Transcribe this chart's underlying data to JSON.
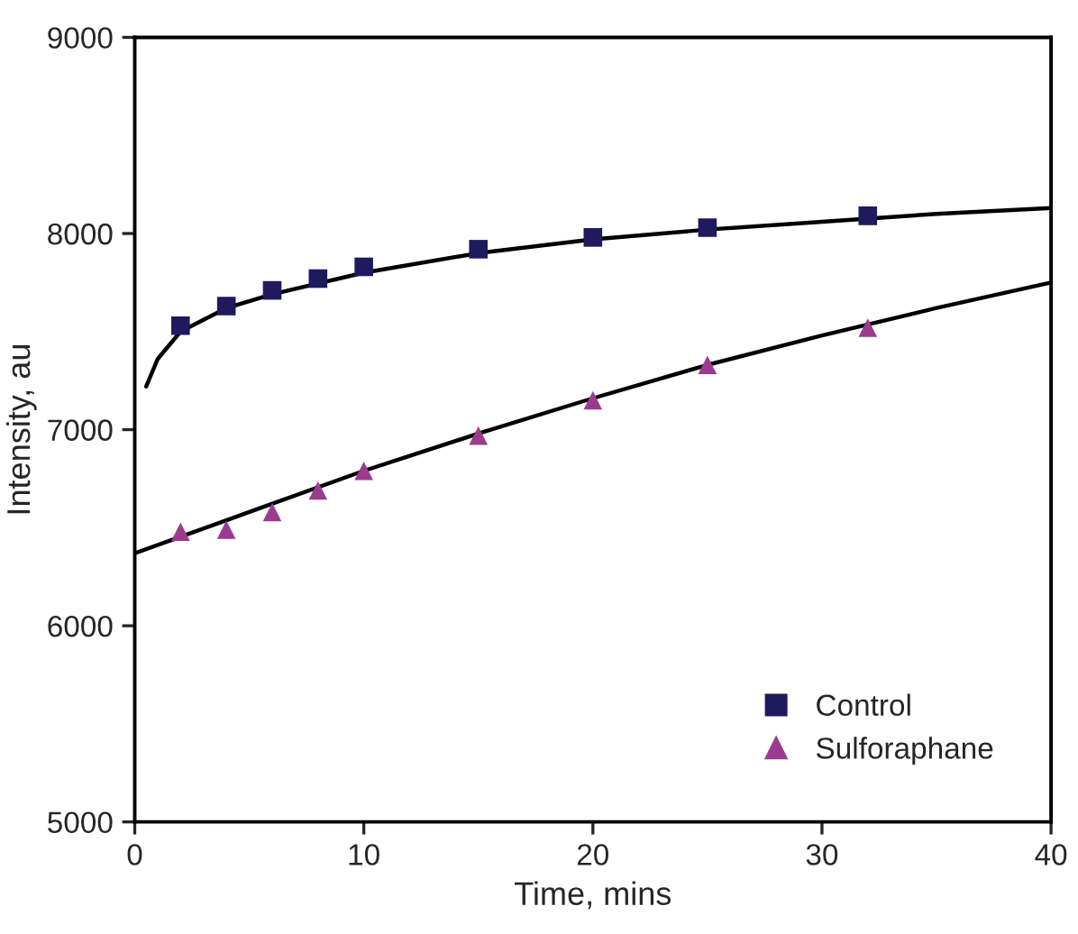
{
  "chart_data": {
    "type": "scatter",
    "xlabel": "Time, mins",
    "ylabel": "Intensity, au",
    "xlim": [
      0,
      40
    ],
    "xticks": [
      0,
      10,
      20,
      30,
      40
    ],
    "ylim": [
      5000,
      9000
    ],
    "yticks": [
      5000,
      6000,
      7000,
      8000,
      9000
    ],
    "grid": false,
    "legend": "bottom right",
    "series": [
      {
        "type": "line",
        "color": "#000000",
        "line_style": "solid",
        "marker": "none",
        "x": [
          0.5,
          1,
          2,
          4,
          6,
          10,
          15,
          20,
          25,
          30,
          35,
          40
        ],
        "values": [
          7220,
          7360,
          7500,
          7620,
          7690,
          7800,
          7900,
          7970,
          8020,
          8060,
          8100,
          8130
        ]
      },
      {
        "type": "line",
        "color": "#000000",
        "line_style": "solid",
        "marker": "none",
        "x": [
          0,
          5,
          10,
          15,
          20,
          25,
          30,
          35,
          40
        ],
        "values": [
          6370,
          6580,
          6790,
          6980,
          7160,
          7330,
          7480,
          7620,
          7750
        ]
      },
      {
        "name": "Control",
        "color": "#1f1a5e",
        "marker": "square",
        "x": [
          2,
          4,
          6,
          8,
          10,
          15,
          20,
          25,
          32
        ],
        "values": [
          7530,
          7630,
          7710,
          7770,
          7830,
          7920,
          7980,
          8030,
          8090
        ]
      },
      {
        "name": "Sulforaphane",
        "color": "#9b3a8f",
        "marker": "triangle",
        "x": [
          2,
          4,
          6,
          8,
          10,
          15,
          20,
          25,
          32
        ],
        "values": [
          6480,
          6490,
          6580,
          6690,
          6790,
          6970,
          7150,
          7330,
          7520
        ]
      }
    ]
  }
}
